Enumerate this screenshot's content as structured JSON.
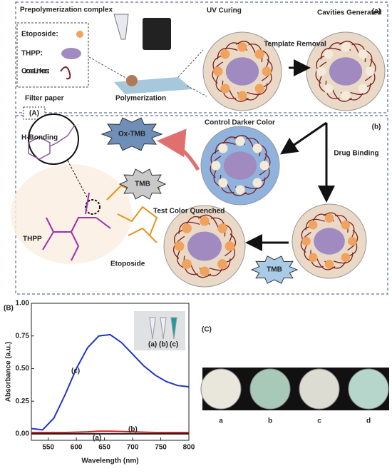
{
  "panel_A": {
    "tag": "(A)",
    "sub_a": {
      "tag": "(a)",
      "prepolymerization": "Prepolymerization complex",
      "etoposide_key": "Etoposide:",
      "thpp_key": "THPP:",
      "crosslinker_key": "Cross Linkers:",
      "filter_paper": "Filter paper",
      "polymerization": "Polymerization",
      "uv_curing": "UV Curing",
      "template_removal": "Template Removal",
      "cavities": "Cavities Generated"
    },
    "sub_b": {
      "tag": "(b)",
      "h_bonding": "H-Bonding",
      "control": "Control Darker Color",
      "ox_tmb": "Ox-TMB",
      "tmb": "TMB",
      "drug_binding": "Drug Binding",
      "test": "Test Color Quenched",
      "thpp": "THPP",
      "etoposide": "Etoposide"
    }
  },
  "chart_data": {
    "type": "line",
    "panel": "(B)",
    "x_label": "Wavelength (nm)",
    "y_label": "Absorbance (a.u.)",
    "x": [
      520,
      540,
      560,
      580,
      600,
      620,
      640,
      660,
      680,
      700,
      720,
      740,
      760,
      780,
      800
    ],
    "series": [
      {
        "name": "(a)",
        "color": "#222222",
        "values": [
          0.0,
          0.0,
          0.0,
          0.0,
          0.0,
          0.0,
          0.0,
          0.0,
          0.0,
          0.0,
          0.0,
          0.0,
          0.0,
          0.0,
          0.0
        ]
      },
      {
        "name": "(b)",
        "color": "#d62020",
        "values": [
          0.01,
          0.01,
          0.01,
          0.01,
          0.012,
          0.015,
          0.02,
          0.02,
          0.018,
          0.015,
          0.012,
          0.01,
          0.01,
          0.01,
          0.01
        ]
      },
      {
        "name": "(c)",
        "color": "#1f35c8",
        "values": [
          0.04,
          0.03,
          0.12,
          0.3,
          0.5,
          0.66,
          0.75,
          0.76,
          0.7,
          0.61,
          0.52,
          0.45,
          0.4,
          0.37,
          0.36
        ]
      }
    ],
    "xlim": [
      520,
      800
    ],
    "xticks": [
      550,
      600,
      650,
      700,
      750,
      800
    ],
    "ylim": [
      -0.05,
      1.0
    ],
    "yticks": [
      {
        "value": 0,
        "label": "0.00"
      },
      {
        "value": 0.25,
        "label": "0.25"
      },
      {
        "value": 0.5,
        "label": "0.50"
      },
      {
        "value": 0.75,
        "label": "0.75"
      },
      {
        "value": 1.0,
        "label": "1.00"
      }
    ]
  },
  "panel_C": {
    "tag": "(C)",
    "labels": [
      "a",
      "b",
      "c",
      "d"
    ]
  }
}
